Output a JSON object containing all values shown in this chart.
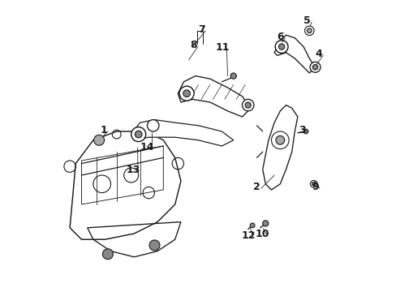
{
  "background_color": "#ffffff",
  "fig_width": 4.89,
  "fig_height": 3.6,
  "dpi": 100,
  "line_color": "#1a1a1a",
  "line_width": 0.8
}
